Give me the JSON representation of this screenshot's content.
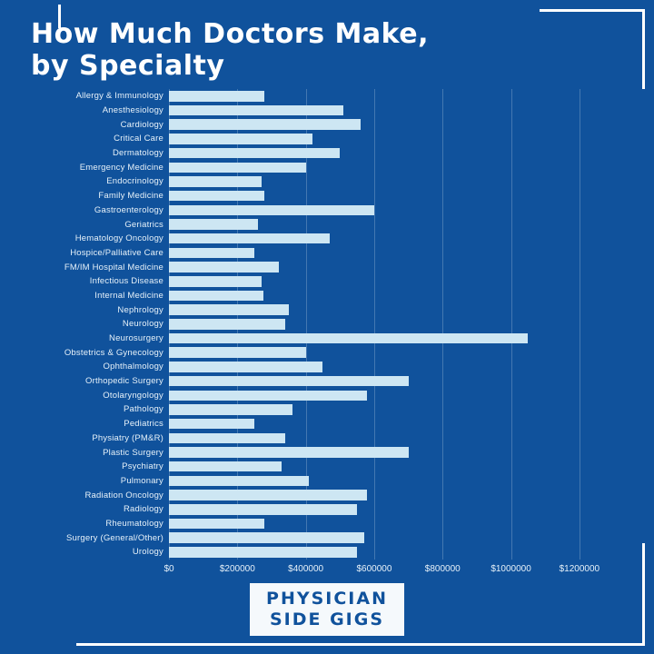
{
  "page": {
    "title_line1": "How Much Doctors Make,",
    "title_line2": "by Specialty",
    "badge_line1": "PHYSICIAN",
    "badge_line2": "SIDE GIGS"
  },
  "colors": {
    "background": "#10529C",
    "bar": "#CDE6F3",
    "text": "#E6F1F9",
    "badge_bg": "#F5F9FC",
    "badge_text": "#10529C",
    "gridline": "rgba(255,255,255,0.22)"
  },
  "chart_data": {
    "type": "bar",
    "orientation": "horizontal",
    "title": "How Much Doctors Make, by Specialty",
    "xlabel": "",
    "ylabel": "",
    "xlim": [
      0,
      1200000
    ],
    "grid": true,
    "x_ticks": [
      0,
      200000,
      400000,
      600000,
      800000,
      1000000,
      1200000
    ],
    "x_tick_labels": [
      "$0",
      "$200000",
      "$400000",
      "$600000",
      "$800000",
      "$1000000",
      "$1200000"
    ],
    "categories": [
      "Allergy & Immunology",
      "Anesthesiology",
      "Cardiology",
      "Critical Care",
      "Dermatology",
      "Emergency Medicine",
      "Endocrinology",
      "Family Medicine",
      "Gastroenterology",
      "Geriatrics",
      "Hematology Oncology",
      "Hospice/Palliative Care",
      "FM/IM Hospital Medicine",
      "Infectious Disease",
      "Internal Medicine",
      "Nephrology",
      "Neurology",
      "Neurosurgery",
      "Obstetrics & Gynecology",
      "Ophthalmology",
      "Orthopedic Surgery",
      "Otolaryngology",
      "Pathology",
      "Pediatrics",
      "Physiatry (PM&R)",
      "Plastic Surgery",
      "Psychiatry",
      "Pulmonary",
      "Radiation Oncology",
      "Radiology",
      "Rheumatology",
      "Surgery (General/Other)",
      "Urology"
    ],
    "values": [
      280000,
      510000,
      560000,
      420000,
      500000,
      400000,
      270000,
      280000,
      600000,
      260000,
      470000,
      250000,
      320000,
      270000,
      275000,
      350000,
      340000,
      1050000,
      400000,
      450000,
      700000,
      580000,
      360000,
      250000,
      340000,
      700000,
      330000,
      410000,
      580000,
      550000,
      280000,
      570000,
      550000
    ]
  }
}
